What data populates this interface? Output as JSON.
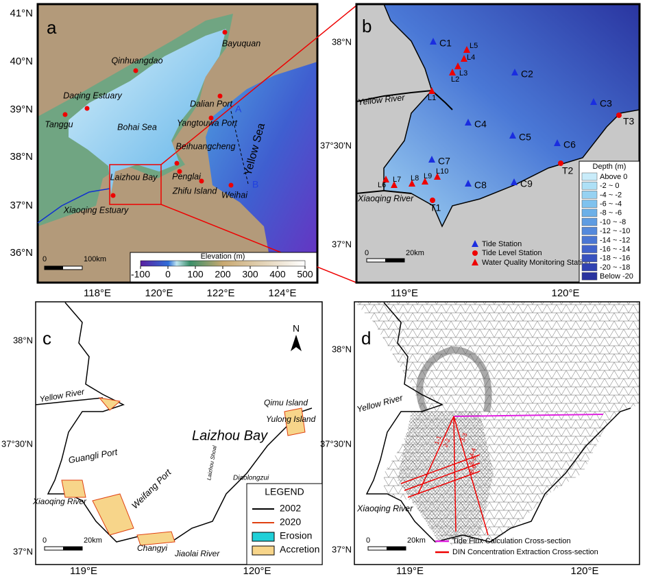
{
  "panel_a": {
    "label": "a",
    "y_ticks": [
      "41°N",
      "40°N",
      "39°N",
      "38°N",
      "37°N",
      "36°N"
    ],
    "x_ticks": [
      "118°E",
      "120°E",
      "122°E",
      "124°E"
    ],
    "places": [
      "Bayuquan",
      "Qinhuangdao",
      "Daqing Estuary",
      "Tanggu",
      "Dalian Port",
      "Bohai Sea",
      "Yangtouwa Port",
      "Beihuangcheng",
      "Laizhou Bay",
      "Penglai",
      "Zhifu Island",
      "Weihai",
      "Xiaoqing Estuary"
    ],
    "sections": [
      "A",
      "B"
    ],
    "sea": "Yellow Sea",
    "scale": [
      "0",
      "100km"
    ],
    "colorbar": {
      "title": "Elevation (m)",
      "ticks": [
        -100,
        0,
        100,
        200,
        300,
        400,
        500
      ]
    }
  },
  "panel_b": {
    "label": "b",
    "y_ticks": [
      "38°N",
      "37°30'N",
      "37°N"
    ],
    "x_ticks": [
      "119°E",
      "120°E"
    ],
    "rivers": [
      "Yellow River",
      "Xiaoqing River"
    ],
    "tide_stations": [
      "C1",
      "C2",
      "C3",
      "C4",
      "C5",
      "C6",
      "C7",
      "C8",
      "C9"
    ],
    "tide_level_stations": [
      "T1",
      "T2",
      "T3"
    ],
    "water_quality_stations": [
      "L1",
      "L2",
      "L3",
      "L4",
      "L5",
      "L6",
      "L7",
      "L8",
      "L9",
      "L10"
    ],
    "legend": [
      "Tide Station",
      "Tide Level Station",
      "Water Quality Monitoring Station"
    ],
    "depth_legend": {
      "title": "Depth (m)",
      "items": [
        "Above 0",
        "-2 ~ 0",
        "-4 ~ -2",
        "-6 ~ -4",
        "-8 ~ -6",
        "-10 ~ -8",
        "-12 ~ -10",
        "-14 ~ -12",
        "-16 ~ -14",
        "-18 ~ -16",
        "-20 ~ -18",
        "Below -20"
      ]
    },
    "scale": [
      "0",
      "20km"
    ]
  },
  "panel_c": {
    "label": "c",
    "y_ticks": [
      "38°N",
      "37°30'N",
      "37°N"
    ],
    "x_ticks": [
      "119°E",
      "120°E"
    ],
    "places": [
      "Yellow River",
      "Qimu Island",
      "Yulong Island",
      "Laizhou Bay",
      "Guangli Port",
      "Laizhou Shoal",
      "Diaolongzui",
      "Xiaoqing River",
      "Weifang Port",
      "Changyi",
      "Jiaolai River"
    ],
    "north": "N",
    "legend": {
      "title": "LEGEND",
      "items": [
        "2002",
        "2020",
        "Erosion",
        "Accretion"
      ]
    },
    "scale": [
      "0",
      "20km"
    ]
  },
  "panel_d": {
    "label": "d",
    "y_ticks": [
      "38°N",
      "37°30'N",
      "37°N"
    ],
    "x_ticks": [
      "119°E",
      "120°E"
    ],
    "rivers": [
      "Yellow River",
      "Xiaoqing River"
    ],
    "sections": [
      "1-1",
      "2-2",
      "3-3",
      "4-4",
      "5-5",
      "6-6"
    ],
    "legend": [
      "Tide Flux Calculation Cross-section",
      "DIN Concentration Extraction Cross-section"
    ],
    "scale": [
      "0",
      "20km"
    ]
  }
}
